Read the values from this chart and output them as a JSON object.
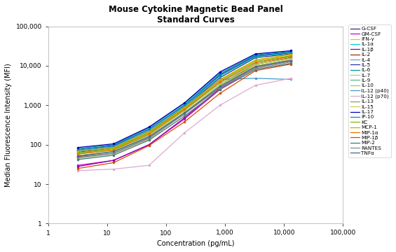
{
  "title": "Mouse Cytokine Magnetic Bead Panel\nStandard Curves",
  "xlabel": "Concentration (pg/mL)",
  "ylabel": "Median Fluorescence Intensity (MFI)",
  "x_points": [
    3.2,
    12.8,
    51.2,
    204.8,
    819.2,
    3276.8,
    13107.2
  ],
  "xlim": [
    1,
    100000
  ],
  "ylim": [
    1,
    100000
  ],
  "bg_color": "#ffffff",
  "series": [
    {
      "label": "G-CSF",
      "color": "#2e2e8b",
      "y": [
        65,
        80,
        200,
        900,
        5000,
        16000,
        20000
      ]
    },
    {
      "label": "GM-CSF",
      "color": "#cc00cc",
      "y": [
        30,
        40,
        100,
        450,
        2500,
        9000,
        14000
      ]
    },
    {
      "label": "IFN-γ",
      "color": "#e8c800",
      "y": [
        60,
        75,
        190,
        800,
        4500,
        14000,
        19000
      ]
    },
    {
      "label": "IL-1α",
      "color": "#00cccc",
      "y": [
        70,
        85,
        220,
        950,
        5500,
        17000,
        21000
      ]
    },
    {
      "label": "IL-1β",
      "color": "#8800aa",
      "y": [
        28,
        40,
        100,
        480,
        2700,
        9500,
        14500
      ]
    },
    {
      "label": "IL-2",
      "color": "#993300",
      "y": [
        50,
        60,
        140,
        620,
        3200,
        11000,
        16000
      ]
    },
    {
      "label": "IL-4",
      "color": "#7799bb",
      "y": [
        60,
        72,
        170,
        750,
        3800,
        12000,
        17500
      ]
    },
    {
      "label": "IL-5",
      "color": "#3333aa",
      "y": [
        75,
        95,
        250,
        1000,
        6000,
        18000,
        22000
      ]
    },
    {
      "label": "IL-6",
      "color": "#009999",
      "y": [
        80,
        100,
        270,
        1100,
        6500,
        19000,
        23000
      ]
    },
    {
      "label": "IL-7",
      "color": "#99cc99",
      "y": [
        45,
        58,
        140,
        600,
        3000,
        9500,
        13500
      ]
    },
    {
      "label": "IL-9",
      "color": "#55bb88",
      "y": [
        52,
        65,
        155,
        650,
        3300,
        10000,
        14500
      ]
    },
    {
      "label": "IL-10",
      "color": "#aacc44",
      "y": [
        58,
        72,
        175,
        720,
        3600,
        11000,
        15500
      ]
    },
    {
      "label": "IL-12 (p40)",
      "color": "#4499cc",
      "y": [
        70,
        88,
        230,
        900,
        4500,
        4800,
        4500
      ]
    },
    {
      "label": "IL-12 (p70)",
      "color": "#ddaacc",
      "y": [
        22,
        24,
        30,
        200,
        1000,
        3200,
        4800
      ]
    },
    {
      "label": "IL-13",
      "color": "#999966",
      "y": [
        48,
        60,
        145,
        600,
        2900,
        9000,
        13000
      ]
    },
    {
      "label": "IL-15",
      "color": "#cccc55",
      "y": [
        53,
        67,
        160,
        660,
        3200,
        10000,
        14500
      ]
    },
    {
      "label": "IL-17",
      "color": "#0000bb",
      "y": [
        85,
        105,
        280,
        1150,
        7000,
        20000,
        24000
      ]
    },
    {
      "label": "IP-10",
      "color": "#0088bb",
      "y": [
        75,
        92,
        245,
        1000,
        5700,
        17500,
        21500
      ]
    },
    {
      "label": "KC",
      "color": "#88bb00",
      "y": [
        62,
        80,
        200,
        840,
        4200,
        13000,
        18000
      ]
    },
    {
      "label": "MCP-1",
      "color": "#ccaa00",
      "y": [
        67,
        85,
        215,
        880,
        4400,
        14000,
        19500
      ]
    },
    {
      "label": "MIP-1α",
      "color": "#dd7700",
      "y": [
        58,
        74,
        185,
        790,
        3900,
        12000,
        17000
      ]
    },
    {
      "label": "MIP-1β",
      "color": "#dd4400",
      "y": [
        25,
        35,
        95,
        380,
        2000,
        7500,
        11000
      ]
    },
    {
      "label": "MIP-2",
      "color": "#447777",
      "y": [
        42,
        54,
        130,
        530,
        2500,
        8000,
        11500
      ]
    },
    {
      "label": "RANTES",
      "color": "#888888",
      "y": [
        47,
        61,
        148,
        600,
        2800,
        8500,
        12500
      ]
    },
    {
      "label": "TNFα",
      "color": "#446699",
      "y": [
        52,
        67,
        158,
        640,
        3000,
        9500,
        13500
      ]
    }
  ]
}
